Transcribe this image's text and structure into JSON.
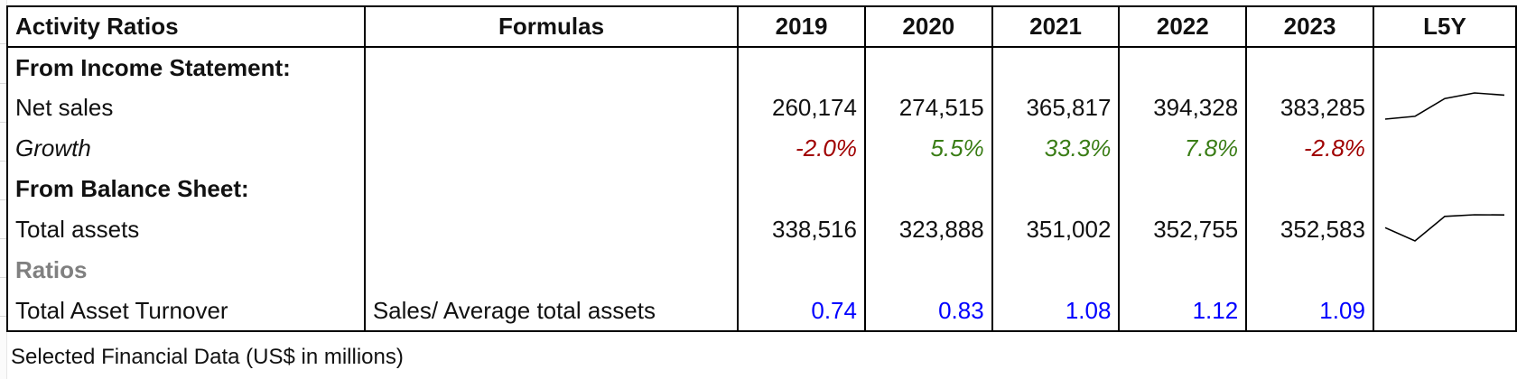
{
  "table": {
    "headers": [
      "Activity Ratios",
      "Formulas",
      "2019",
      "2020",
      "2021",
      "2022",
      "2023",
      "L5Y"
    ],
    "income_section": "From Income Statement:",
    "net_sales": {
      "label": "Net sales",
      "values": [
        "260,174",
        "274,515",
        "365,817",
        "394,328",
        "383,285"
      ],
      "sparkline": [
        260174,
        274515,
        365817,
        394328,
        383285
      ]
    },
    "growth": {
      "label": "Growth",
      "values": [
        "-2.0%",
        "5.5%",
        "33.3%",
        "7.8%",
        "-2.8%"
      ],
      "colors": [
        "#a00000",
        "#3a7d16",
        "#3a7d16",
        "#3a7d16",
        "#a00000"
      ]
    },
    "balance_section": "From Balance Sheet:",
    "total_assets": {
      "label": "Total assets",
      "values": [
        "338,516",
        "323,888",
        "351,002",
        "352,755",
        "352,583"
      ],
      "sparkline": [
        338516,
        323888,
        351002,
        352755,
        352583
      ]
    },
    "ratios_section": "Ratios",
    "turnover": {
      "label": "Total Asset Turnover",
      "formula": "Sales/ Average total assets",
      "values": [
        "0.74",
        "0.83",
        "1.08",
        "1.12",
        "1.09"
      ]
    }
  },
  "footnote": "Selected Financial Data (US$ in millions)"
}
